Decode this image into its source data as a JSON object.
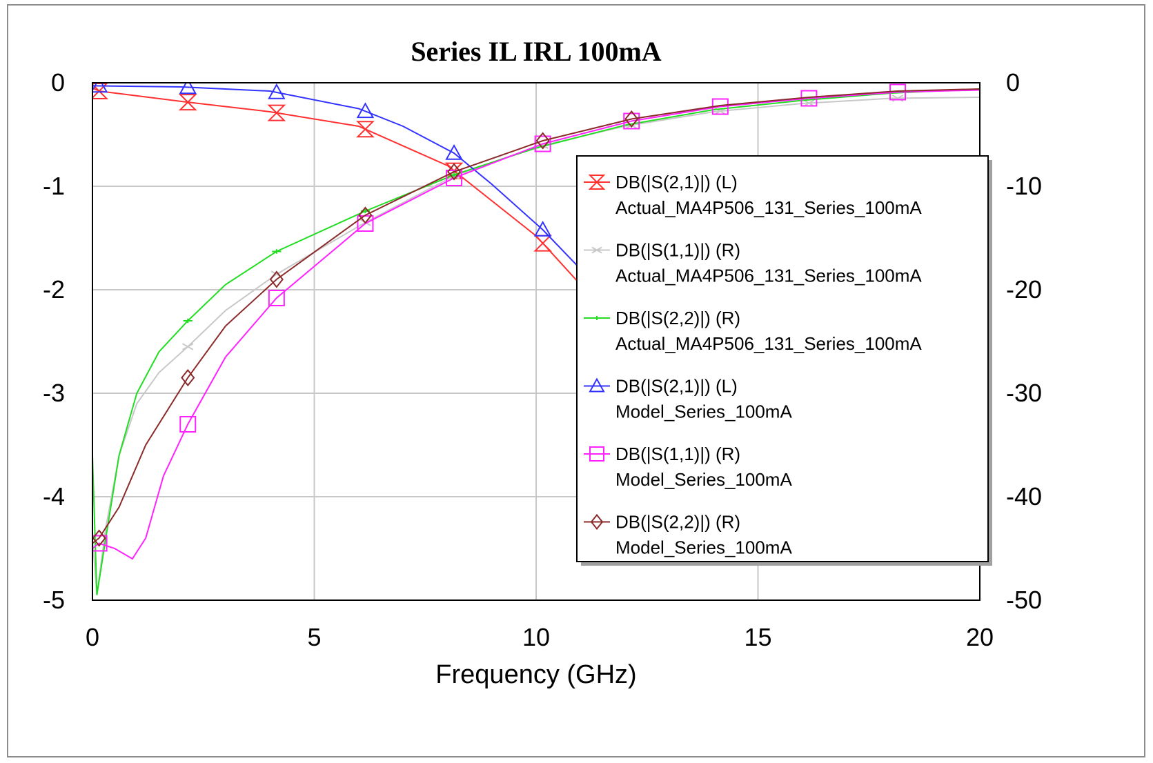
{
  "chart_data": {
    "type": "line",
    "title": "Series IL IRL 100mA",
    "xlabel": "Frequency (GHz)",
    "xlim": [
      0,
      20
    ],
    "ylim_left": [
      -5,
      0
    ],
    "ylim_right": [
      -50,
      0
    ],
    "xticks": [
      "0",
      "5",
      "10",
      "15",
      "20"
    ],
    "yticks_left": [
      "0",
      "-1",
      "-2",
      "-3",
      "-4",
      "-5"
    ],
    "yticks_right": [
      "0",
      "-10",
      "-20",
      "-30",
      "-40",
      "-50"
    ],
    "grid": true,
    "legend_position": "right",
    "series": [
      {
        "name": "DB(|S(2,1)|) (L)",
        "name2": "Actual_MA4P506_131_Series_100mA",
        "axis": "left",
        "color": "#ff3030",
        "marker": "hourglass",
        "x": [
          0,
          0.15,
          2,
          4,
          6,
          8,
          10,
          11,
          12.5,
          14
        ],
        "y": [
          -0.05,
          -0.08,
          -0.18,
          -0.28,
          -0.42,
          -0.8,
          -1.48,
          -1.95,
          -2.6,
          -3.4
        ],
        "marker_x": [
          0.15,
          2.15,
          4.15,
          6.15,
          8.15,
          10.15
        ]
      },
      {
        "name": "DB(|S(1,1)|) (R)",
        "name2": "Actual_MA4P506_131_Series_100mA",
        "axis": "right",
        "color": "#c8c8c8",
        "marker": "x",
        "x": [
          0,
          0.1,
          0.3,
          0.6,
          1,
          1.5,
          2.15,
          3,
          4.15,
          6.15,
          8.15,
          10,
          12,
          14,
          16,
          18,
          20
        ],
        "y": [
          -44,
          -49.5,
          -43,
          -36,
          -31,
          -28,
          -25.5,
          -22,
          -18.5,
          -13.5,
          -9,
          -6.2,
          -4.2,
          -2.8,
          -2,
          -1.5,
          -1.4
        ],
        "marker_x": [
          2.15,
          4.15,
          6.15,
          8.15,
          10.15,
          12.15,
          14.15,
          16.15,
          18.15
        ]
      },
      {
        "name": "DB(|S(2,2)|) (R)",
        "name2": "Actual_MA4P506_131_Series_100mA",
        "axis": "right",
        "color": "#22dd22",
        "marker": "dash",
        "x": [
          0,
          0.1,
          0.3,
          0.6,
          1,
          1.5,
          2.15,
          3,
          4.15,
          6.15,
          8.15,
          10,
          12,
          14,
          16,
          18,
          20
        ],
        "y": [
          -36,
          -49.5,
          -44,
          -36,
          -30,
          -26,
          -23,
          -19.5,
          -16.3,
          -12.4,
          -8.9,
          -6.3,
          -4.1,
          -2.6,
          -1.7,
          -1.0,
          -0.6
        ],
        "marker_x": [
          2.15,
          4.15,
          6.15,
          8.15
        ]
      },
      {
        "name": "DB(|S(2,1)|) (L)",
        "name2": "Model_Series_100mA",
        "axis": "left",
        "color": "#3333ff",
        "marker": "triangle",
        "x": [
          0,
          0.15,
          2,
          4,
          6,
          7,
          8.15,
          9,
          10.15,
          11,
          12
        ],
        "y": [
          -0.03,
          -0.03,
          -0.04,
          -0.08,
          -0.25,
          -0.42,
          -0.68,
          -0.98,
          -1.42,
          -1.8,
          -2.2
        ],
        "marker_x": [
          0.15,
          2.15,
          4.15,
          6.15,
          8.15,
          10.15
        ]
      },
      {
        "name": "DB(|S(1,1)|) (R)",
        "name2": "Model_Series_100mA",
        "axis": "right",
        "color": "#ff22ff",
        "marker": "square",
        "x": [
          0,
          0.15,
          0.5,
          0.9,
          1.2,
          1.6,
          2.15,
          3,
          4.15,
          6.15,
          8.15,
          10.15,
          12.15,
          14.15,
          16.15,
          18.15,
          20
        ],
        "y": [
          -45,
          -44.5,
          -45,
          -46,
          -44,
          -38,
          -33,
          -26.5,
          -20.8,
          -13.6,
          -9.2,
          -5.9,
          -3.7,
          -2.3,
          -1.5,
          -0.9,
          -0.7
        ],
        "marker_x": [
          0.15,
          2.15,
          4.15,
          6.15,
          8.15,
          10.15,
          12.15,
          14.15,
          16.15,
          18.15
        ]
      },
      {
        "name": "DB(|S(2,2)|) (R)",
        "name2": "Model_Series_100mA",
        "axis": "right",
        "color": "#8b2a2a",
        "marker": "diamond",
        "x": [
          0,
          0.15,
          0.6,
          1.2,
          2.15,
          3,
          4.15,
          6.15,
          8.15,
          10.15,
          12.15,
          14.15,
          16.15,
          18.15,
          20
        ],
        "y": [
          -44.5,
          -44,
          -41,
          -35,
          -28.5,
          -23.5,
          -19,
          -12.8,
          -8.6,
          -5.6,
          -3.5,
          -2.2,
          -1.4,
          -0.8,
          -0.6
        ],
        "marker_x": [
          0.15,
          2.15,
          4.15,
          6.15,
          8.15,
          10.15,
          12.15
        ]
      }
    ]
  }
}
